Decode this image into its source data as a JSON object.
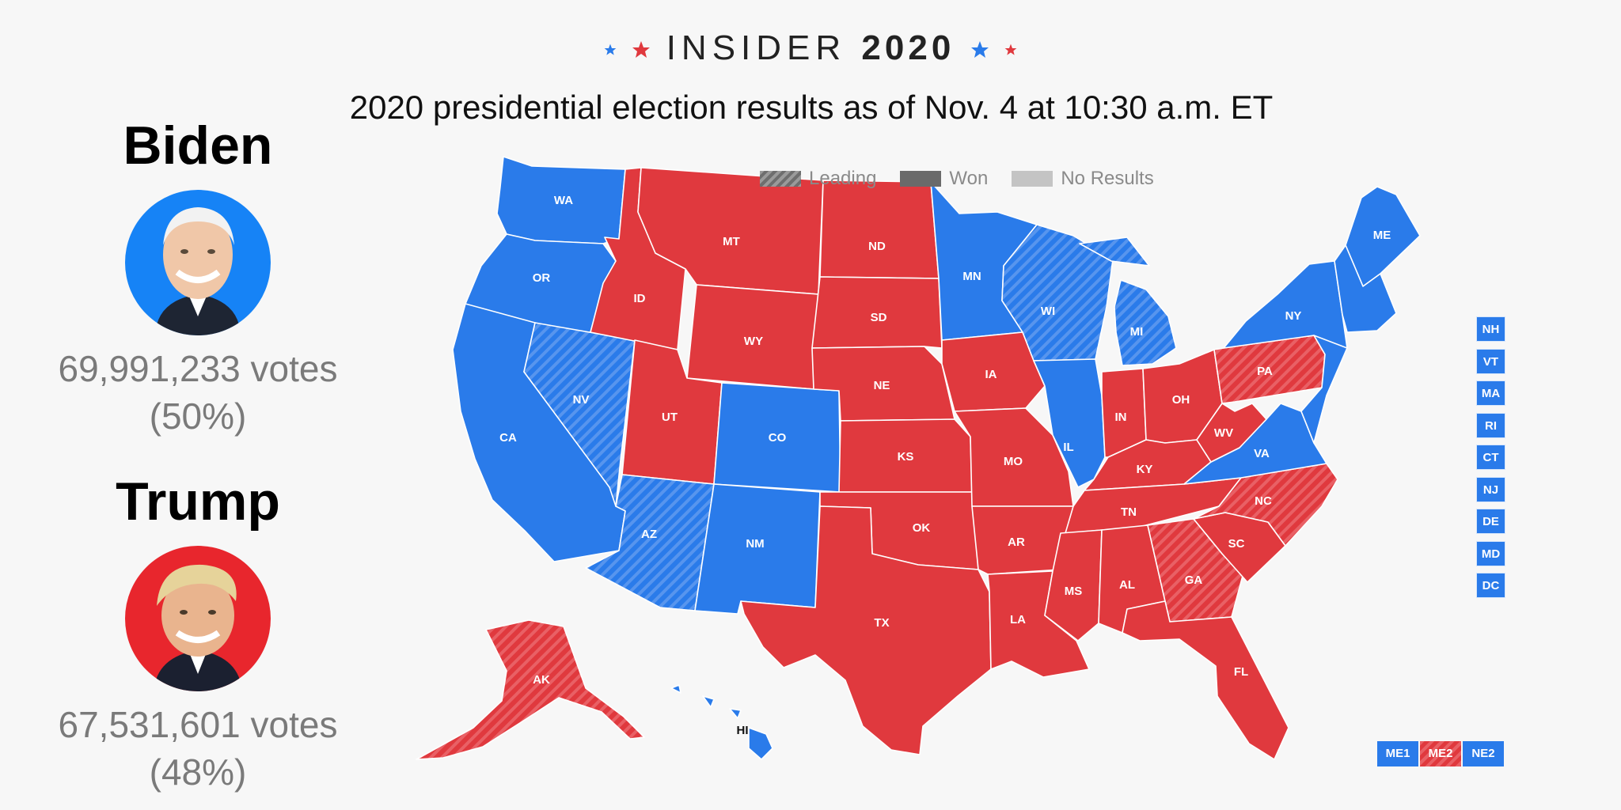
{
  "brand": {
    "word": "INSIDER",
    "year": "2020"
  },
  "headline": "2020 presidential election results as of Nov. 4 at 10:30 a.m. ET",
  "colors": {
    "dem": "#2a7bea",
    "rep": "#e0393e",
    "bg": "#f7f7f7"
  },
  "candidates": [
    {
      "name": "Biden",
      "votes": "69,991,233 votes",
      "pct": "(50%)",
      "party_color": "#2a7bea"
    },
    {
      "name": "Trump",
      "votes": "67,531,601 votes",
      "pct": "(48%)",
      "party_color": "#e0393e"
    }
  ],
  "legend": {
    "leading": "Leading",
    "won": "Won",
    "no_results": "No Results"
  },
  "states": {
    "WA": "D",
    "OR": "D",
    "CA": "D",
    "NV": "D-lead",
    "ID": "R",
    "MT": "R",
    "WY": "R",
    "UT": "R",
    "AZ": "D-lead",
    "CO": "D",
    "NM": "D",
    "ND": "R",
    "SD": "R",
    "NE": "R",
    "KS": "R",
    "OK": "R",
    "TX": "R",
    "MN": "D",
    "IA": "R",
    "MO": "R",
    "AR": "R",
    "LA": "R",
    "WI": "D-lead",
    "IL": "D",
    "MI": "D-lead",
    "IN": "R",
    "OH": "R",
    "KY": "R",
    "TN": "R",
    "MS": "R",
    "AL": "R",
    "GA": "R-lead",
    "FL": "R",
    "SC": "R",
    "NC": "R-lead",
    "VA": "D",
    "WV": "R",
    "PA": "R-lead",
    "NY": "D",
    "ME": "D",
    "AK": "R-lead",
    "HI": "D"
  },
  "small_states": [
    "NH",
    "VT",
    "MA",
    "RI",
    "CT",
    "NJ",
    "DE",
    "MD",
    "DC"
  ],
  "maine_districts": [
    {
      "label": "ME1",
      "status": "D"
    },
    {
      "label": "ME2",
      "status": "R-lead"
    },
    {
      "label": "NE2",
      "status": "D"
    }
  ]
}
